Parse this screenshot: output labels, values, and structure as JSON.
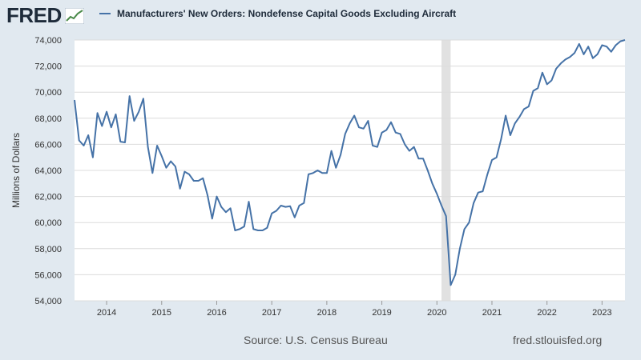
{
  "header": {
    "logo_text": "FRED",
    "series_title": "Manufacturers' New Orders: Nondefense Capital Goods Excluding Aircraft"
  },
  "footer": {
    "source": "Source: U.S. Census Bureau",
    "url": "fred.stlouisfed.org"
  },
  "colors": {
    "line": "#4572a7",
    "plot_bg": "#ffffff",
    "page_bg": "#e1e9f0",
    "recession": "#e1e1e1",
    "grid": "#dcdcdc"
  },
  "chart_data": {
    "type": "line",
    "title": "Manufacturers' New Orders: Nondefense Capital Goods Excluding Aircraft",
    "xlabel": "",
    "ylabel": "Millions of Dollars",
    "ylim": [
      54000,
      74000
    ],
    "xlim": [
      "2013-06",
      "2023-06"
    ],
    "y_ticks": [
      54000,
      56000,
      58000,
      60000,
      62000,
      64000,
      66000,
      68000,
      70000,
      72000,
      74000
    ],
    "y_tick_labels": [
      "54,000",
      "56,000",
      "58,000",
      "60,000",
      "62,000",
      "64,000",
      "66,000",
      "68,000",
      "70,000",
      "72,000",
      "74,000"
    ],
    "x_ticks": [
      "2014-01",
      "2015-01",
      "2016-01",
      "2017-01",
      "2018-01",
      "2019-01",
      "2020-01",
      "2021-01",
      "2022-01",
      "2023-01"
    ],
    "x_tick_labels": [
      "2014",
      "2015",
      "2016",
      "2017",
      "2018",
      "2019",
      "2020",
      "2021",
      "2022",
      "2023"
    ],
    "grid": "horizontal",
    "legend": "top",
    "recession": {
      "start": "2020-02",
      "end": "2020-04"
    },
    "series": [
      {
        "name": "Manufacturers' New Orders: Nondefense Capital Goods Excluding Aircraft",
        "dates": [
          "2013-06",
          "2013-07",
          "2013-08",
          "2013-09",
          "2013-10",
          "2013-11",
          "2013-12",
          "2014-01",
          "2014-02",
          "2014-03",
          "2014-04",
          "2014-05",
          "2014-06",
          "2014-07",
          "2014-08",
          "2014-09",
          "2014-10",
          "2014-11",
          "2014-12",
          "2015-01",
          "2015-02",
          "2015-03",
          "2015-04",
          "2015-05",
          "2015-06",
          "2015-07",
          "2015-08",
          "2015-09",
          "2015-10",
          "2015-11",
          "2015-12",
          "2016-01",
          "2016-02",
          "2016-03",
          "2016-04",
          "2016-05",
          "2016-06",
          "2016-07",
          "2016-08",
          "2016-09",
          "2016-10",
          "2016-11",
          "2016-12",
          "2017-01",
          "2017-02",
          "2017-03",
          "2017-04",
          "2017-05",
          "2017-06",
          "2017-07",
          "2017-08",
          "2017-09",
          "2017-10",
          "2017-11",
          "2017-12",
          "2018-01",
          "2018-02",
          "2018-03",
          "2018-04",
          "2018-05",
          "2018-06",
          "2018-07",
          "2018-08",
          "2018-09",
          "2018-10",
          "2018-11",
          "2018-12",
          "2019-01",
          "2019-02",
          "2019-03",
          "2019-04",
          "2019-05",
          "2019-06",
          "2019-07",
          "2019-08",
          "2019-09",
          "2019-10",
          "2019-11",
          "2019-12",
          "2020-01",
          "2020-02",
          "2020-03",
          "2020-04",
          "2020-05",
          "2020-06",
          "2020-07",
          "2020-08",
          "2020-09",
          "2020-10",
          "2020-11",
          "2020-12",
          "2021-01",
          "2021-02",
          "2021-03",
          "2021-04",
          "2021-05",
          "2021-06",
          "2021-07",
          "2021-08",
          "2021-09",
          "2021-10",
          "2021-11",
          "2021-12",
          "2022-01",
          "2022-02",
          "2022-03",
          "2022-04",
          "2022-05",
          "2022-06",
          "2022-07",
          "2022-08",
          "2022-09",
          "2022-10",
          "2022-11",
          "2022-12",
          "2023-01",
          "2023-02",
          "2023-03",
          "2023-04",
          "2023-05",
          "2023-06"
        ],
        "values": [
          69400,
          66300,
          65900,
          66700,
          65000,
          68400,
          67400,
          68500,
          67300,
          68300,
          66200,
          66150,
          69700,
          67800,
          68500,
          69500,
          65800,
          63800,
          65900,
          65100,
          64200,
          64700,
          64300,
          62600,
          63900,
          63700,
          63200,
          63200,
          63400,
          62100,
          60300,
          62000,
          61200,
          60800,
          61100,
          59400,
          59500,
          59700,
          61600,
          59500,
          59400,
          59400,
          59600,
          60700,
          60900,
          61300,
          61200,
          61250,
          60400,
          61300,
          61500,
          63700,
          63800,
          64000,
          63800,
          63800,
          65500,
          64200,
          65200,
          66800,
          67600,
          68200,
          67300,
          67200,
          67800,
          65900,
          65800,
          66900,
          67100,
          67700,
          66900,
          66800,
          66000,
          65500,
          65800,
          64900,
          64900,
          64000,
          63000,
          62200,
          61300,
          60500,
          55200,
          56000,
          58000,
          59500,
          60000,
          61500,
          62300,
          62400,
          63700,
          64800,
          65000,
          66400,
          68200,
          66700,
          67600,
          68100,
          68700,
          68900,
          70100,
          70300,
          71500,
          70600,
          70900,
          71800,
          72200,
          72500,
          72700,
          73000,
          73700,
          72900,
          73500,
          72600,
          72900,
          73600,
          73500,
          73100,
          73600,
          73900,
          74000
        ]
      }
    ]
  }
}
